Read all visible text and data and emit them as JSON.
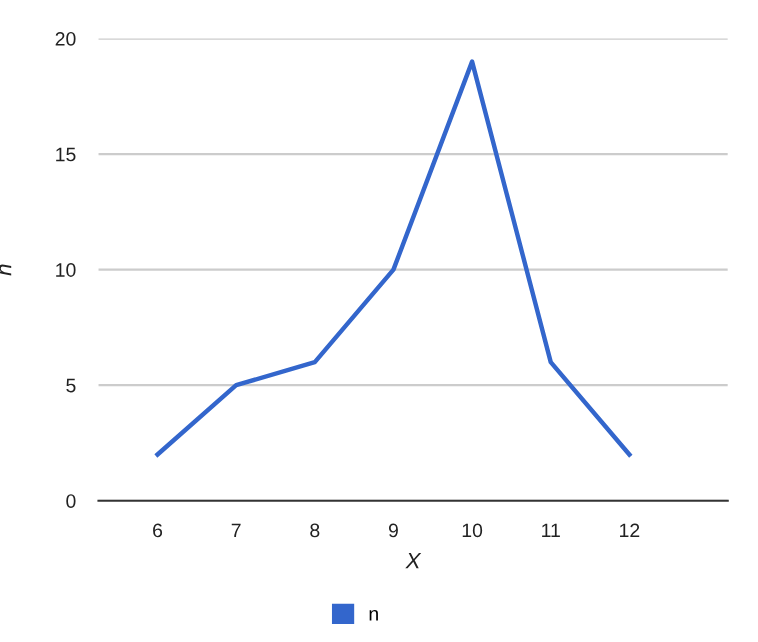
{
  "chart_data": {
    "type": "line",
    "xlabel": "X",
    "ylabel": "n",
    "categories": [
      "6",
      "7",
      "8",
      "9",
      "10",
      "11",
      "12"
    ],
    "series": [
      {
        "name": "n",
        "color": "#3366cc",
        "values": [
          2,
          5,
          6,
          10,
          19,
          6,
          2
        ]
      }
    ],
    "ylim": [
      0,
      20
    ],
    "yticks": [
      0,
      5,
      10,
      15,
      20
    ],
    "grid": "y",
    "legend": "bottom",
    "marker": "none",
    "line_style": "solid"
  }
}
